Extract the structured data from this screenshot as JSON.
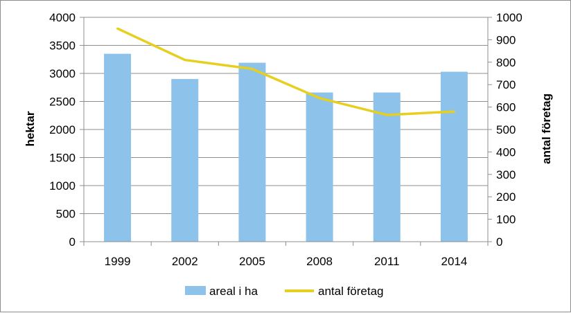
{
  "chart_data": {
    "type": "bar+line",
    "categories": [
      "1999",
      "2002",
      "2005",
      "2008",
      "2011",
      "2014"
    ],
    "series": [
      {
        "name": "areal i ha",
        "type": "bar",
        "axis": "left",
        "color": "#8dc3ea",
        "values": [
          3350,
          2900,
          3190,
          2660,
          2660,
          3030
        ]
      },
      {
        "name": "antal företag",
        "type": "line",
        "axis": "right",
        "color": "#e6cf1e",
        "values": [
          950,
          810,
          770,
          640,
          565,
          580
        ]
      }
    ],
    "ylabel": "hektar",
    "y2label": "antal företag",
    "ylim": [
      0,
      4000
    ],
    "y2lim": [
      0,
      1000
    ],
    "yticks": [
      0,
      500,
      1000,
      1500,
      2000,
      2500,
      3000,
      3500,
      4000
    ],
    "y2ticks": [
      0,
      100,
      200,
      300,
      400,
      500,
      600,
      700,
      800,
      900,
      1000
    ],
    "grid": true,
    "legend": "bottom"
  }
}
